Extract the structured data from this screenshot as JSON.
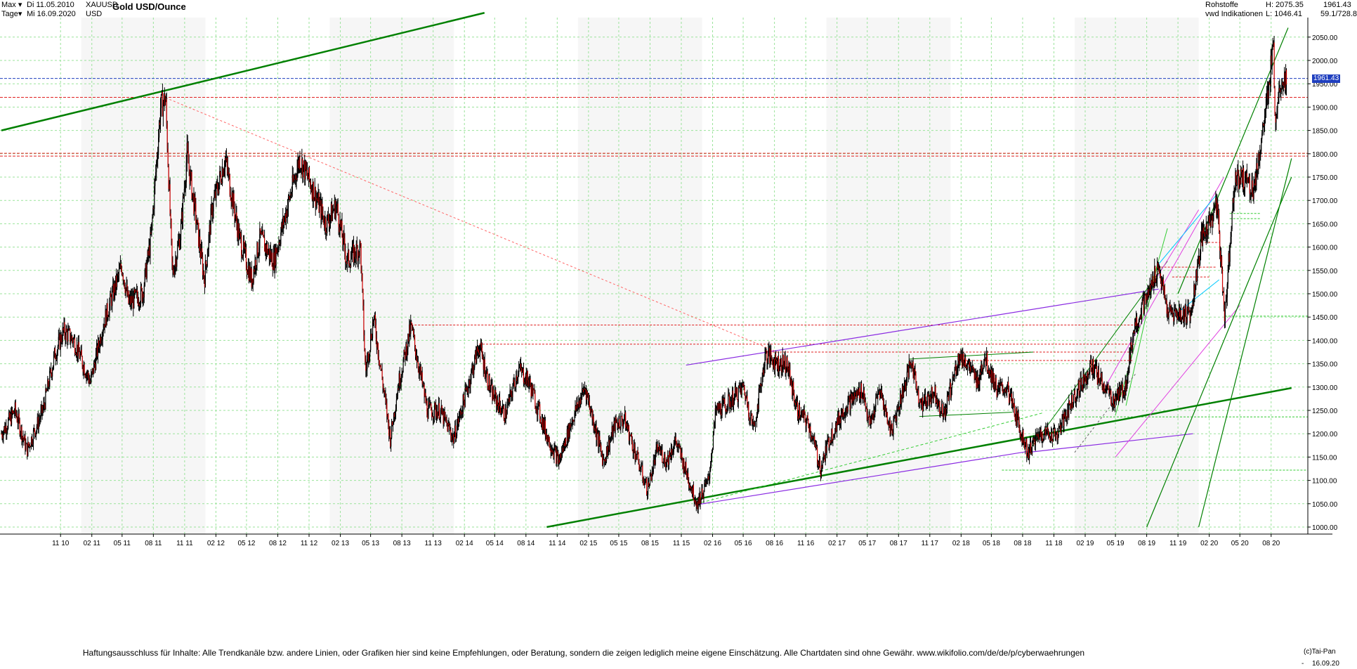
{
  "header": {
    "range_label": "Max",
    "interval_label": "Tage",
    "date_from": "Di 11.05.2010",
    "date_to": "Mi 16.09.2020",
    "symbol": "XAUUSD",
    "currency": "USD",
    "title": "Gold USD/Ounce",
    "category": "Rohstoffe",
    "source": "vwd Indikationen",
    "high": "H: 2075.35",
    "low": "L: 1046.41",
    "last": "1961.43",
    "ratio": "59.1/728.8"
  },
  "footer": {
    "disclaimer": "Haftungsausschluss für Inhalte: Alle Trendkanäle bzw. andere Linien, oder Grafiken hier sind keine Empfehlungen, oder Beratung, sondern die zeigen lediglich meine eigene Einschätzung. Alle Chartdaten sind ohne Gewähr.  www.wikifolio.com/de/de/p/cyberwaehrungen",
    "copyright": "(c)Tai-Pan",
    "last_date": "16.09.20",
    "dash": "-"
  },
  "colors": {
    "candle_up": "#000000",
    "candle_down": "#d00000",
    "grid": "#9be39b",
    "trend_green": "#008000",
    "trend_purple": "#8a2be2",
    "trend_magenta": "#e040e0",
    "trend_cyan": "#00c8ff",
    "support_red": "#e02020",
    "last_price": "#1f3fbf"
  },
  "chart_data": {
    "type": "candlestick",
    "title": "Gold USD/Ounce",
    "ylim": [
      1000,
      2100
    ],
    "y_ticks": [
      1000,
      1050,
      1100,
      1150,
      1200,
      1250,
      1300,
      1350,
      1400,
      1450,
      1500,
      1550,
      1600,
      1650,
      1700,
      1750,
      1800,
      1850,
      1900,
      1950,
      2000,
      2050
    ],
    "y_tick_labels": [
      "1000.00",
      "1050.00",
      "1100.00",
      "1150.00",
      "1200.00",
      "1250.00",
      "1300.00",
      "1350.00",
      "1400.00",
      "1450.00",
      "1500.00",
      "1550.00",
      "1600.00",
      "1650.00",
      "1700.00",
      "1750.00",
      "1800.00",
      "1850.00",
      "1900.00",
      "1950.00",
      "2000.00",
      "2050.00"
    ],
    "x_ticks": [
      "11 10",
      "02 11",
      "05 11",
      "08 11",
      "11 11",
      "02 12",
      "05 12",
      "08 12",
      "11 12",
      "02 13",
      "05 13",
      "08 13",
      "11 13",
      "02 14",
      "05 14",
      "08 14",
      "11 14",
      "02 15",
      "05 15",
      "08 15",
      "11 15",
      "02 16",
      "05 16",
      "08 16",
      "11 16",
      "02 17",
      "05 17",
      "08 17",
      "11 17",
      "02 18",
      "05 18",
      "08 18",
      "11 18",
      "02 19",
      "05 19",
      "08 19",
      "11 19",
      "02 20",
      "05 20",
      "08 20"
    ],
    "x_range": [
      "2010-05-11",
      "2020-09-16"
    ],
    "last_value": 1961.43,
    "high": 2075.35,
    "low": 1046.41,
    "grid": true,
    "price_path": [
      [
        "2010-05-11",
        1200
      ],
      [
        "2010-06-20",
        1250
      ],
      [
        "2010-07-25",
        1165
      ],
      [
        "2010-09-10",
        1250
      ],
      [
        "2010-10-15",
        1370
      ],
      [
        "2010-11-10",
        1420
      ],
      [
        "2010-12-10",
        1400
      ],
      [
        "2011-01-28",
        1310
      ],
      [
        "2011-03-05",
        1430
      ],
      [
        "2011-04-30",
        1560
      ],
      [
        "2011-05-20",
        1480
      ],
      [
        "2011-06-30",
        1500
      ],
      [
        "2011-07-25",
        1620
      ],
      [
        "2011-08-22",
        1900
      ],
      [
        "2011-09-06",
        1920
      ],
      [
        "2011-09-26",
        1540
      ],
      [
        "2011-10-20",
        1630
      ],
      [
        "2011-11-08",
        1800
      ],
      [
        "2011-12-29",
        1530
      ],
      [
        "2012-01-20",
        1680
      ],
      [
        "2012-02-28",
        1790
      ],
      [
        "2012-04-10",
        1620
      ],
      [
        "2012-05-16",
        1530
      ],
      [
        "2012-06-10",
        1620
      ],
      [
        "2012-07-20",
        1570
      ],
      [
        "2012-08-20",
        1660
      ],
      [
        "2012-10-04",
        1790
      ],
      [
        "2012-11-15",
        1720
      ],
      [
        "2012-12-20",
        1650
      ],
      [
        "2013-01-20",
        1690
      ],
      [
        "2013-02-20",
        1570
      ],
      [
        "2013-04-01",
        1600
      ],
      [
        "2013-04-16",
        1330
      ],
      [
        "2013-05-10",
        1450
      ],
      [
        "2013-06-28",
        1190
      ],
      [
        "2013-07-20",
        1300
      ],
      [
        "2013-08-28",
        1430
      ],
      [
        "2013-10-15",
        1250
      ],
      [
        "2013-11-20",
        1250
      ],
      [
        "2013-12-31",
        1190
      ],
      [
        "2014-03-16",
        1390
      ],
      [
        "2014-04-20",
        1290
      ],
      [
        "2014-06-01",
        1240
      ],
      [
        "2014-07-10",
        1340
      ],
      [
        "2014-08-10",
        1310
      ],
      [
        "2014-10-05",
        1190
      ],
      [
        "2014-11-06",
        1140
      ],
      [
        "2014-12-15",
        1230
      ],
      [
        "2015-01-22",
        1300
      ],
      [
        "2015-03-17",
        1140
      ],
      [
        "2015-04-20",
        1220
      ],
      [
        "2015-05-18",
        1230
      ],
      [
        "2015-07-24",
        1080
      ],
      [
        "2015-08-24",
        1170
      ],
      [
        "2015-09-18",
        1140
      ],
      [
        "2015-10-15",
        1185
      ],
      [
        "2015-12-17",
        1050
      ],
      [
        "2016-01-20",
        1100
      ],
      [
        "2016-02-11",
        1250
      ],
      [
        "2016-03-10",
        1260
      ],
      [
        "2016-05-02",
        1300
      ],
      [
        "2016-06-01",
        1210
      ],
      [
        "2016-07-06",
        1370
      ],
      [
        "2016-08-15",
        1350
      ],
      [
        "2016-09-06",
        1350
      ],
      [
        "2016-10-07",
        1250
      ],
      [
        "2016-11-10",
        1220
      ],
      [
        "2016-12-15",
        1125
      ],
      [
        "2017-01-10",
        1190
      ],
      [
        "2017-02-27",
        1260
      ],
      [
        "2017-04-17",
        1295
      ],
      [
        "2017-05-09",
        1215
      ],
      [
        "2017-06-06",
        1295
      ],
      [
        "2017-07-10",
        1205
      ],
      [
        "2017-09-08",
        1355
      ],
      [
        "2017-10-06",
        1260
      ],
      [
        "2017-11-15",
        1290
      ],
      [
        "2017-12-12",
        1240
      ],
      [
        "2018-01-25",
        1365
      ],
      [
        "2018-02-15",
        1355
      ],
      [
        "2018-03-20",
        1310
      ],
      [
        "2018-04-11",
        1365
      ],
      [
        "2018-05-20",
        1290
      ],
      [
        "2018-06-15",
        1300
      ],
      [
        "2018-08-16",
        1160
      ],
      [
        "2018-09-20",
        1200
      ],
      [
        "2018-11-13",
        1200
      ],
      [
        "2018-12-30",
        1280
      ],
      [
        "2019-02-20",
        1345
      ],
      [
        "2019-04-23",
        1270
      ],
      [
        "2019-05-30",
        1300
      ],
      [
        "2019-06-25",
        1430
      ],
      [
        "2019-08-07",
        1500
      ],
      [
        "2019-09-04",
        1560
      ],
      [
        "2019-10-01",
        1460
      ],
      [
        "2019-11-12",
        1455
      ],
      [
        "2019-12-10",
        1460
      ],
      [
        "2020-01-08",
        1610
      ],
      [
        "2020-02-24",
        1690
      ],
      [
        "2020-03-18",
        1450
      ],
      [
        "2020-04-14",
        1740
      ],
      [
        "2020-05-15",
        1750
      ],
      [
        "2020-06-10",
        1720
      ],
      [
        "2020-07-27",
        1940
      ],
      [
        "2020-08-07",
        2075
      ],
      [
        "2020-08-12",
        1870
      ],
      [
        "2020-08-28",
        1960
      ],
      [
        "2020-09-16",
        1961
      ]
    ]
  }
}
